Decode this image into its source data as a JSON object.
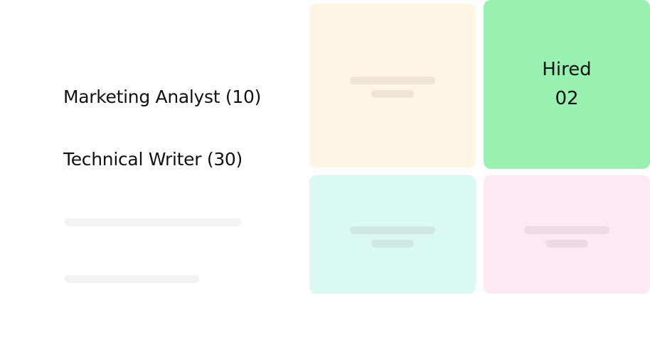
{
  "jobs": [
    {
      "label": "Marketing Analyst (10)"
    },
    {
      "label": "Technical Writer (30)"
    }
  ],
  "hired_card": {
    "title": "Hired",
    "count": "02"
  },
  "colors": {
    "yellow": "#fff5e5",
    "green": "#98f0b1",
    "cyan": "#dbf9f3",
    "pink": "#fde9f4",
    "placeholder": "#f3f3f3"
  }
}
